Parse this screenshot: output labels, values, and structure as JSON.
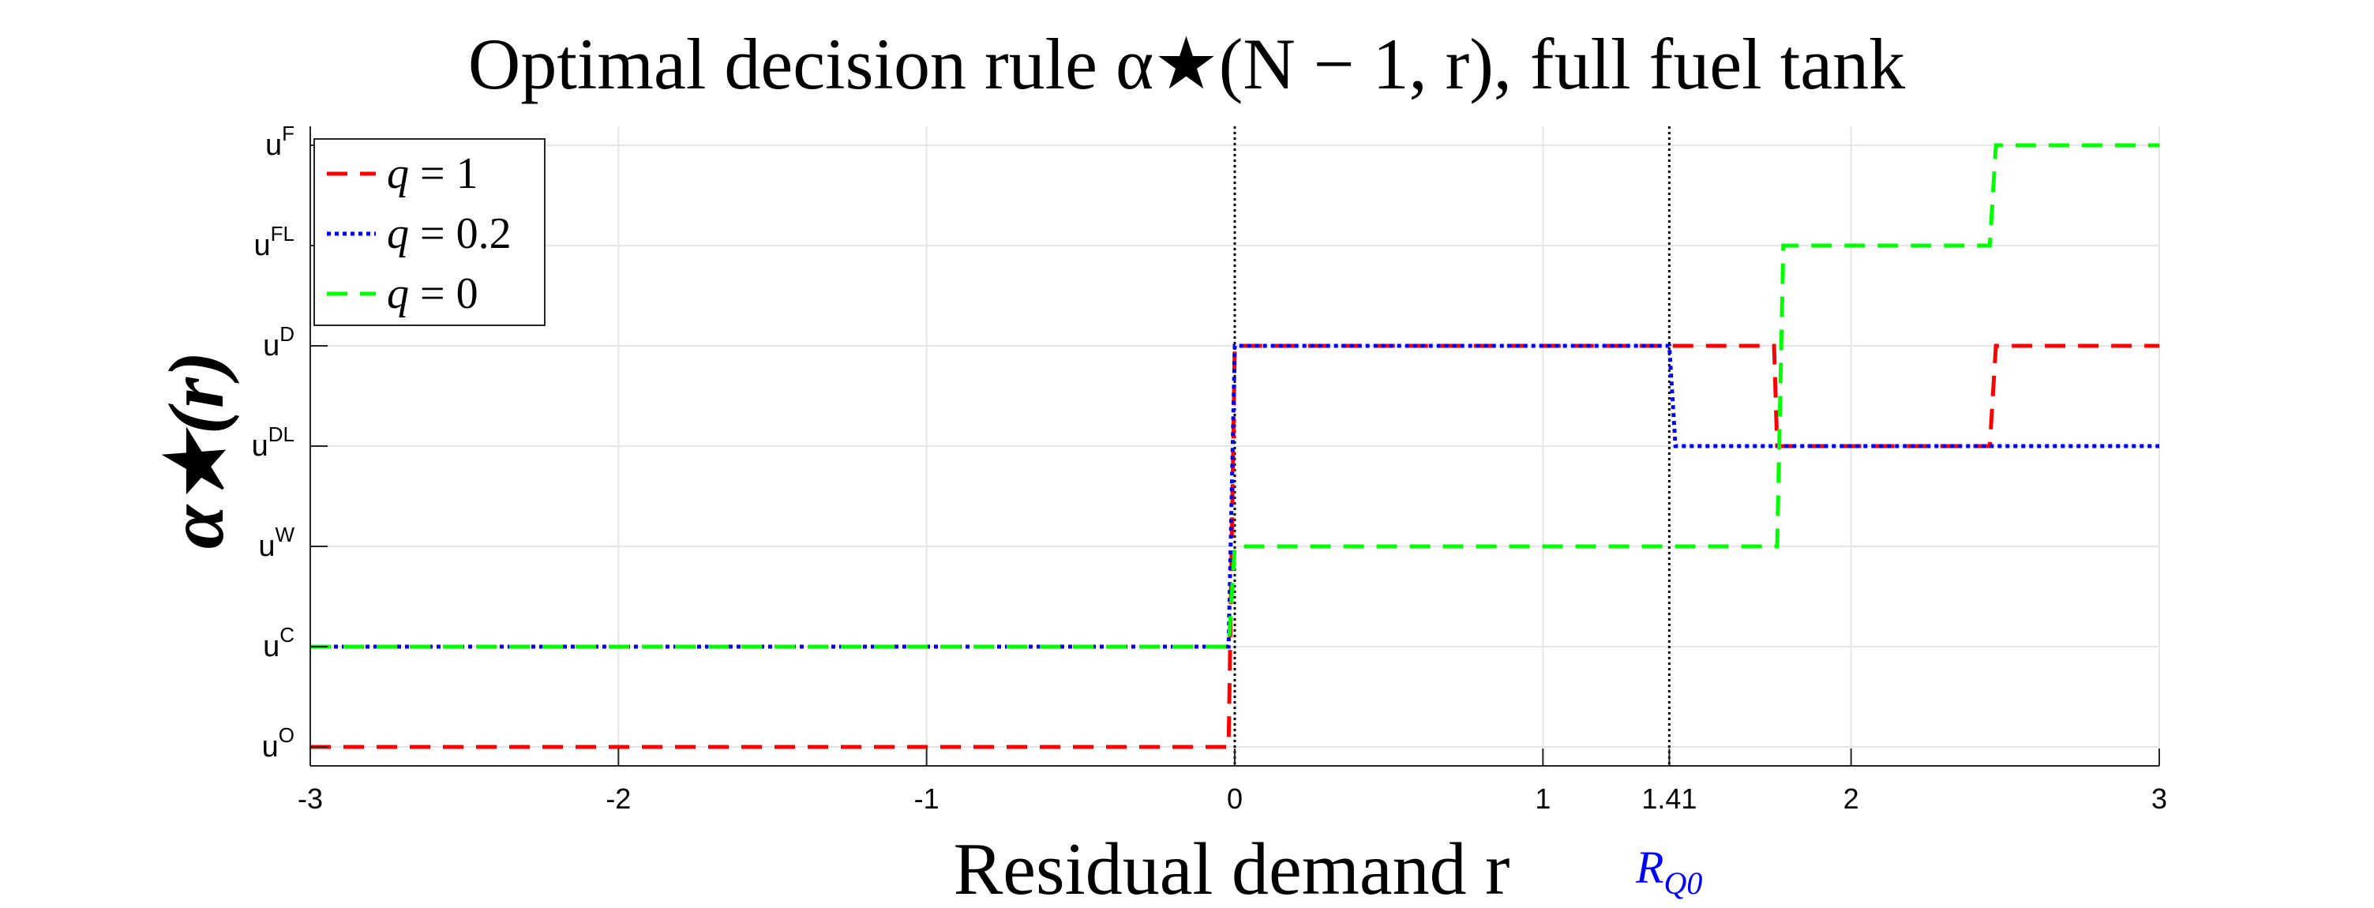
{
  "chart_data": {
    "type": "line",
    "title": "Optimal decision rule α★(N − 1, r), full fuel tank",
    "xlabel": "Residual demand  r",
    "ylabel": "α★(r)",
    "xlim": [
      -3,
      3
    ],
    "ylim": [
      0,
      6
    ],
    "x_ticks": [
      -3,
      -2,
      -1,
      0,
      1,
      1.41,
      2,
      3
    ],
    "x_tick_labels": [
      "-3",
      "-2",
      "-1",
      "0",
      "1",
      "1.41",
      "2",
      "3"
    ],
    "y_ticks": [
      0,
      1,
      2,
      3,
      4,
      5,
      6
    ],
    "y_tick_labels": [
      {
        "base": "u",
        "sup": "O"
      },
      {
        "base": "u",
        "sup": "C"
      },
      {
        "base": "u",
        "sup": "W"
      },
      {
        "base": "u",
        "sup": "DL"
      },
      {
        "base": "u",
        "sup": "D"
      },
      {
        "base": "u",
        "sup": "FL"
      },
      {
        "base": "u",
        "sup": "F"
      }
    ],
    "grid": true,
    "legend_position": "top-left",
    "vertical_lines": [
      {
        "x": 0,
        "label": ""
      },
      {
        "x": 1.41,
        "label": "R_Q0"
      }
    ],
    "vline_annotation": {
      "base": "R",
      "sub": "Q0"
    },
    "series": [
      {
        "name": "q = 1",
        "color": "#ff0000",
        "style": "dashed",
        "x": [
          -3,
          -0.02,
          0,
          1.75,
          1.76,
          2.45,
          2.47,
          3
        ],
        "y": [
          0,
          0,
          4,
          4,
          3,
          3,
          4,
          4
        ]
      },
      {
        "name": "q = 0.2",
        "color": "#0000ff",
        "style": "dotted",
        "x": [
          -3,
          -0.02,
          0,
          1.41,
          1.43,
          3
        ],
        "y": [
          1,
          1,
          4,
          4,
          3,
          3
        ]
      },
      {
        "name": "q = 0",
        "color": "#00ff00",
        "style": "dashed",
        "x": [
          -3,
          -0.02,
          0,
          1.76,
          1.78,
          2.45,
          2.47,
          3
        ],
        "y": [
          1,
          1,
          2,
          2,
          5,
          5,
          6,
          6
        ]
      }
    ],
    "legend": [
      {
        "lhs": "q",
        "rhs": "1"
      },
      {
        "lhs": "q",
        "rhs": "0.2"
      },
      {
        "lhs": "q",
        "rhs": "0"
      }
    ]
  },
  "colors": {
    "axis": "#262626",
    "grid": "#e6e6e6",
    "annotation": "#0000ff"
  }
}
